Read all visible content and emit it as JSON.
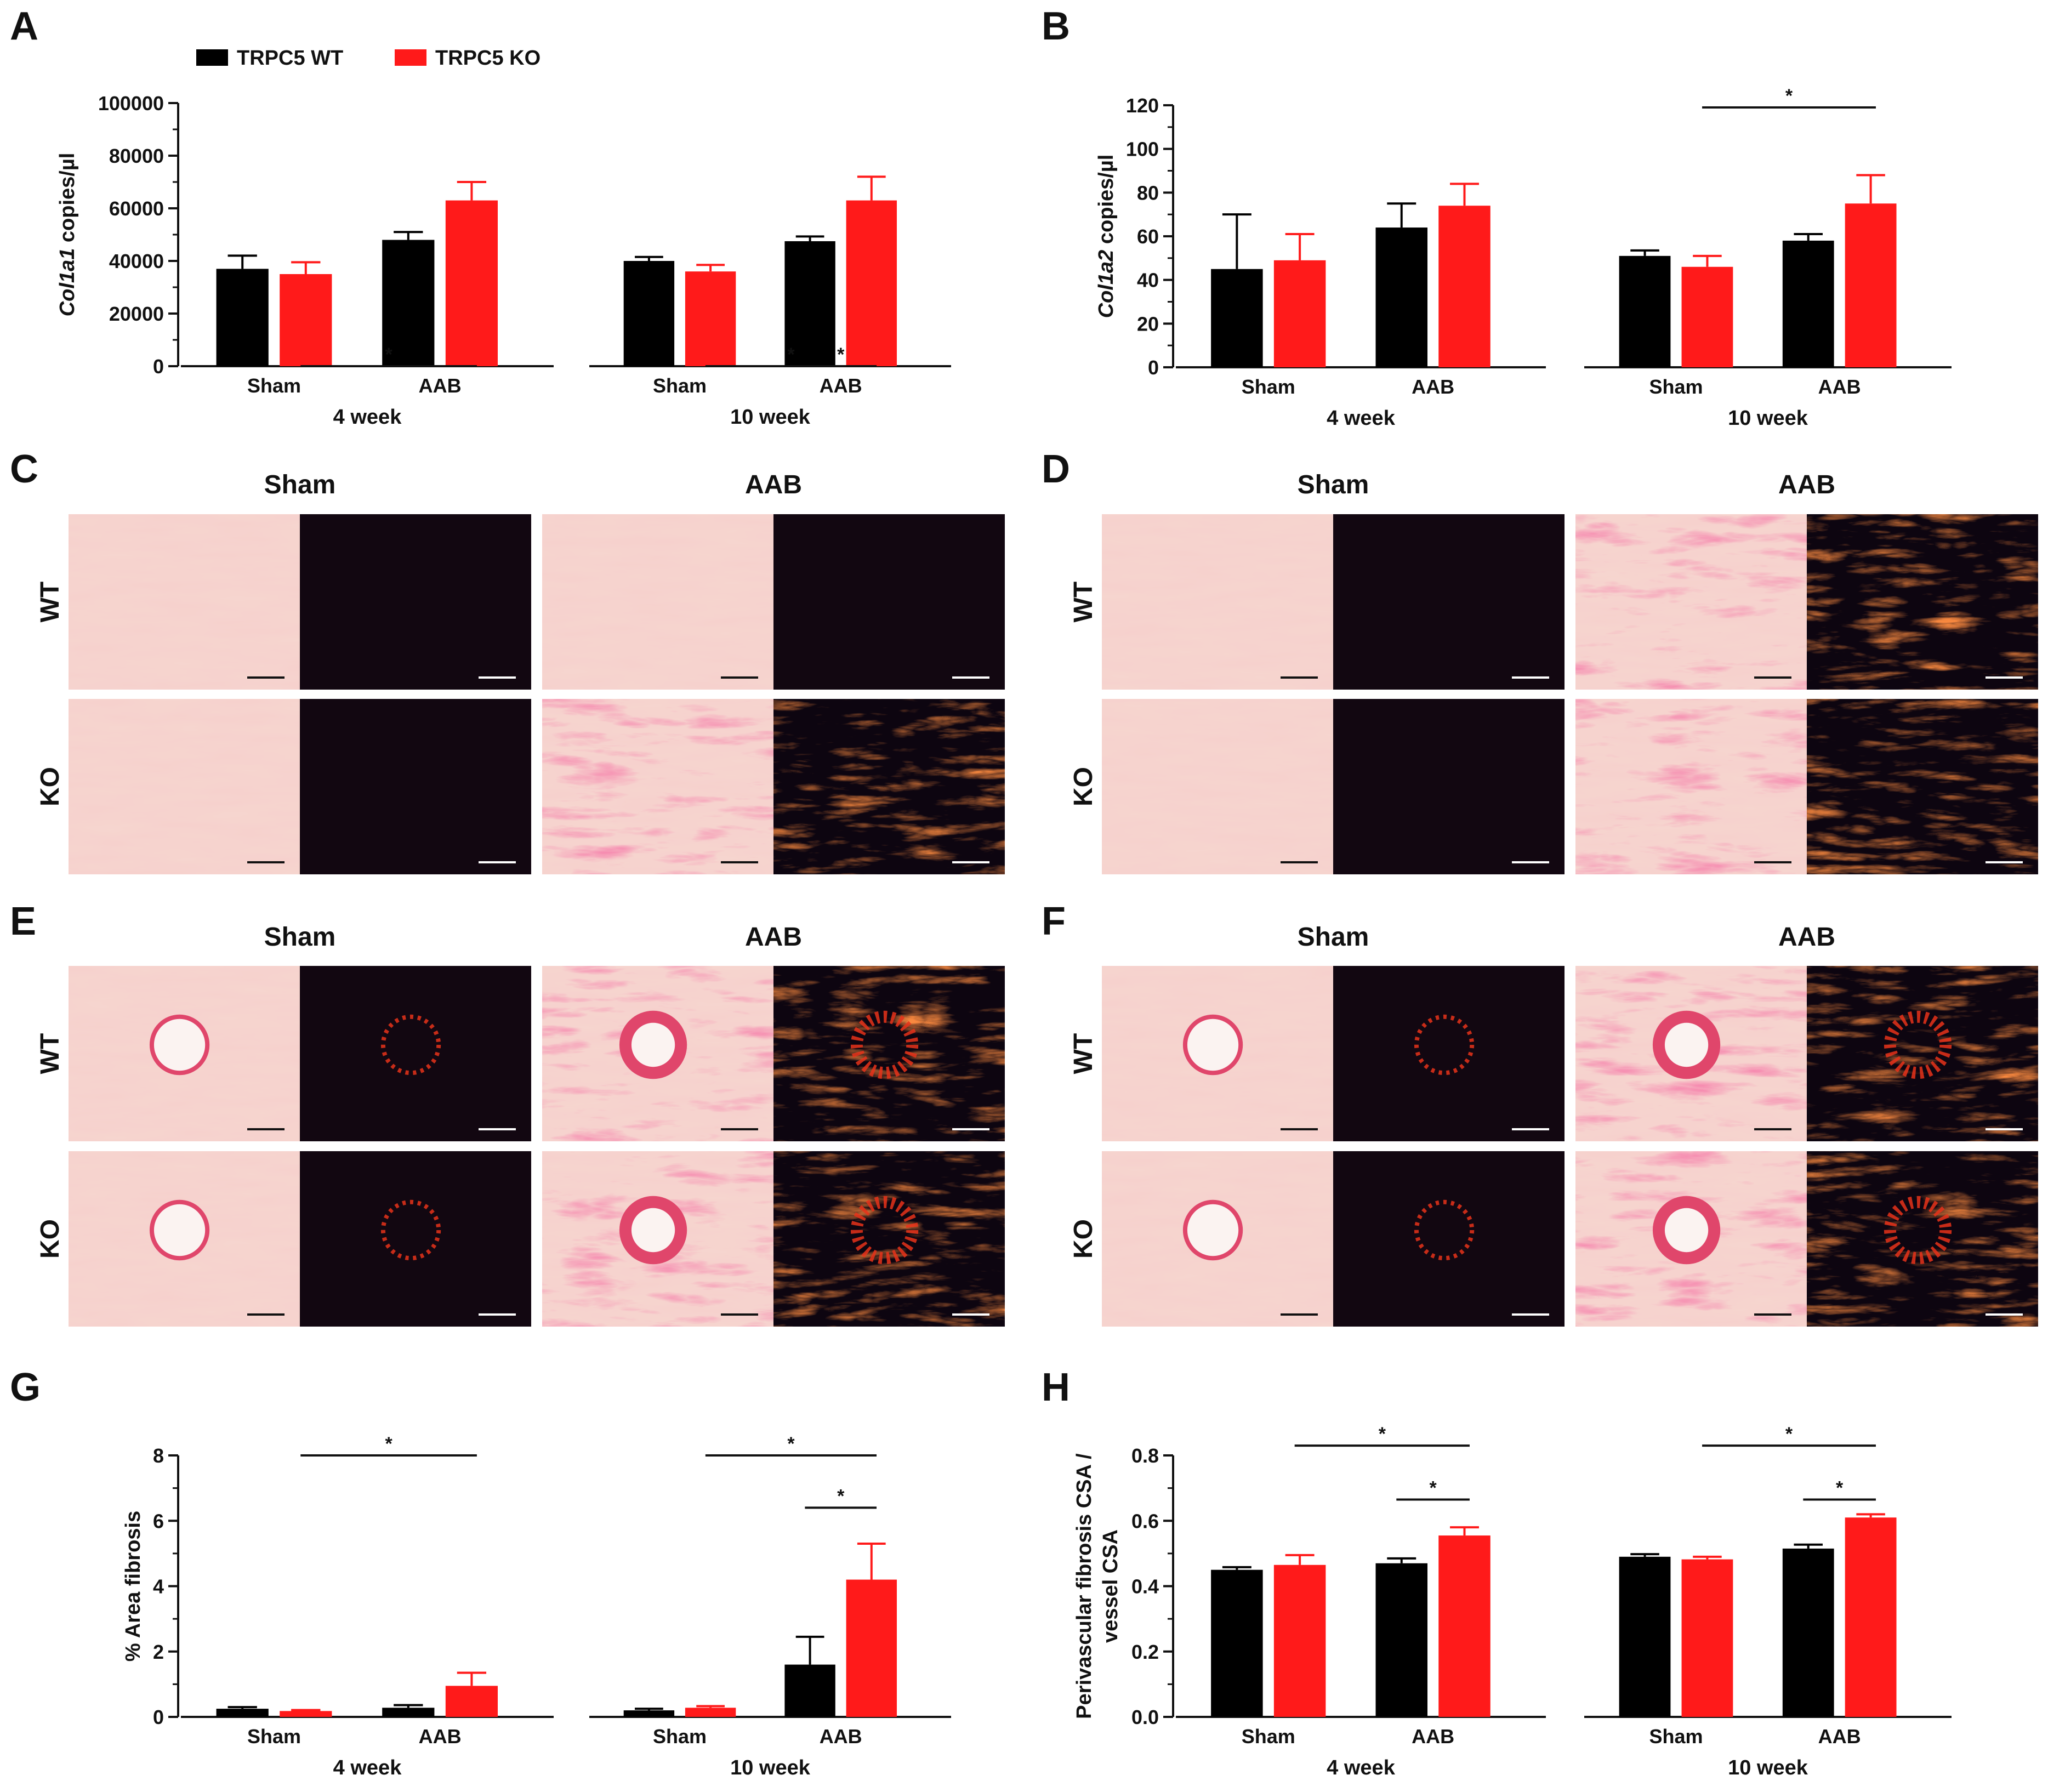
{
  "figure": {
    "panel_letters": [
      "A",
      "B",
      "C",
      "D",
      "E",
      "F",
      "G",
      "H"
    ],
    "legend": [
      {
        "label": "TRPC5 WT",
        "color": "#000000"
      },
      {
        "label": "TRPC5 KO",
        "color": "#ff1a1a"
      }
    ],
    "conditions": [
      "Sham",
      "AAB"
    ],
    "genotypes": [
      "WT",
      "KO"
    ],
    "colors": {
      "wt": "#000000",
      "ko": "#ff1a1a"
    }
  },
  "micrographs": [
    {
      "panel": "C",
      "region": "interstitial",
      "images": {
        "wt_sham_bf": "pale",
        "wt_sham_pl": "dark",
        "wt_aab_bf": "pale",
        "wt_aab_pl": "dark",
        "ko_sham_bf": "pale",
        "ko_sham_pl": "dark",
        "ko_aab_bf": "fibrotic",
        "ko_aab_pl": "fibrotic"
      }
    },
    {
      "panel": "D",
      "region": "interstitial",
      "images": {
        "wt_sham_bf": "pale",
        "wt_sham_pl": "dark",
        "wt_aab_bf": "fibrotic",
        "wt_aab_pl": "fibrotic",
        "ko_sham_bf": "pale",
        "ko_sham_pl": "dark",
        "ko_aab_bf": "fibrotic",
        "ko_aab_pl": "fibrotic"
      }
    },
    {
      "panel": "E",
      "region": "perivascular",
      "images": {
        "wt_sham_bf": "vessel",
        "wt_sham_pl": "vessel-dark",
        "wt_aab_bf": "vessel-fibrotic",
        "wt_aab_pl": "vessel-fibrotic",
        "ko_sham_bf": "vessel",
        "ko_sham_pl": "vessel-dark",
        "ko_aab_bf": "vessel-fibrotic",
        "ko_aab_pl": "vessel-fibrotic"
      }
    },
    {
      "panel": "F",
      "region": "perivascular",
      "images": {
        "wt_sham_bf": "vessel",
        "wt_sham_pl": "vessel-dark",
        "wt_aab_bf": "vessel-fibrotic",
        "wt_aab_pl": "vessel-fibrotic",
        "ko_sham_bf": "vessel",
        "ko_sham_pl": "vessel-dark",
        "ko_aab_bf": "vessel-fibrotic",
        "ko_aab_pl": "vessel-fibrotic"
      }
    }
  ],
  "chart_data": [
    {
      "panel": "A",
      "type": "bar",
      "ylabel_italic": "Col1a1",
      "ylabel_rest": " copies/µl",
      "ylim": [
        0,
        100000
      ],
      "yticks": [
        0,
        20000,
        40000,
        60000,
        80000,
        100000
      ],
      "tick_labels": [
        "0",
        "20000",
        "40000",
        "60000",
        "80000",
        "100000"
      ],
      "groups": [
        {
          "label": "4 week",
          "categories": [
            "Sham",
            "AAB"
          ],
          "wt": [
            37000,
            48000
          ],
          "wt_err": [
            5000,
            3000
          ],
          "ko": [
            35000,
            63000
          ],
          "ko_err": [
            4500,
            7000
          ]
        },
        {
          "label": "10 week",
          "categories": [
            "Sham",
            "AAB"
          ],
          "wt": [
            40000,
            47500
          ],
          "wt_err": [
            1500,
            1800
          ],
          "ko": [
            36000,
            63000
          ],
          "ko_err": [
            2500,
            9000
          ]
        }
      ],
      "significance": [
        {
          "group": 0,
          "from": "ko0",
          "to": "ko1",
          "value": 1.0,
          "label": "*"
        },
        {
          "group": 1,
          "from": "ko0",
          "to": "ko1",
          "value": 1.0,
          "label": "*"
        },
        {
          "group": 1,
          "from": "wt1",
          "to": "ko1",
          "value": 0.8,
          "label": "*"
        }
      ]
    },
    {
      "panel": "B",
      "type": "bar",
      "ylabel_italic": "Col1a2",
      "ylabel_rest": " copies/µl",
      "ylim": [
        0,
        120
      ],
      "yticks": [
        0,
        20,
        40,
        60,
        80,
        100,
        120
      ],
      "tick_labels": [
        "0",
        "20",
        "40",
        "60",
        "80",
        "100",
        "120"
      ],
      "groups": [
        {
          "label": "4 week",
          "categories": [
            "Sham",
            "AAB"
          ],
          "wt": [
            45,
            64
          ],
          "wt_err": [
            25,
            11
          ],
          "ko": [
            49,
            74
          ],
          "ko_err": [
            12,
            10
          ]
        },
        {
          "label": "10 week",
          "categories": [
            "Sham",
            "AAB"
          ],
          "wt": [
            51,
            58
          ],
          "wt_err": [
            2.5,
            3
          ],
          "ko": [
            46,
            75
          ],
          "ko_err": [
            5,
            13
          ]
        }
      ],
      "significance": [
        {
          "group": 1,
          "from": "ko0",
          "to": "ko1",
          "value": 119,
          "label": "*"
        }
      ]
    },
    {
      "panel": "G",
      "type": "bar",
      "ylabel_italic": "",
      "ylabel_rest": "% Area fibrosis",
      "ylim": [
        0,
        8
      ],
      "yticks": [
        0,
        2,
        4,
        6,
        8
      ],
      "tick_labels": [
        "0",
        "2",
        "4",
        "6",
        "8"
      ],
      "groups": [
        {
          "label": "4 week",
          "categories": [
            "Sham",
            "AAB"
          ],
          "wt": [
            0.25,
            0.28
          ],
          "wt_err": [
            0.05,
            0.08
          ],
          "ko": [
            0.18,
            0.95
          ],
          "ko_err": [
            0.03,
            0.4
          ]
        },
        {
          "label": "10 week",
          "categories": [
            "Sham",
            "AAB"
          ],
          "wt": [
            0.2,
            1.6
          ],
          "wt_err": [
            0.05,
            0.85
          ],
          "ko": [
            0.28,
            4.2
          ],
          "ko_err": [
            0.05,
            1.1
          ]
        }
      ],
      "significance": [
        {
          "group": 0,
          "from": "ko0",
          "to": "ko1",
          "value": 8.0,
          "label": "*"
        },
        {
          "group": 1,
          "from": "ko0",
          "to": "ko1",
          "value": 8.0,
          "label": "*"
        },
        {
          "group": 1,
          "from": "wt1",
          "to": "ko1",
          "value": 6.4,
          "label": "*"
        }
      ]
    },
    {
      "panel": "H",
      "type": "bar",
      "ylabel_italic": "",
      "ylabel_rest": "Perivascular fibrosis CSA /",
      "ylabel_line2": "vessel CSA",
      "ylim": [
        0,
        0.8
      ],
      "yticks": [
        0,
        0.2,
        0.4,
        0.6,
        0.8
      ],
      "tick_labels": [
        "0.0",
        "0.2",
        "0.4",
        "0.6",
        "0.8"
      ],
      "groups": [
        {
          "label": "4 week",
          "categories": [
            "Sham",
            "AAB"
          ],
          "wt": [
            0.45,
            0.47
          ],
          "wt_err": [
            0.008,
            0.015
          ],
          "ko": [
            0.465,
            0.555
          ],
          "ko_err": [
            0.03,
            0.025
          ]
        },
        {
          "label": "10 week",
          "categories": [
            "Sham",
            "AAB"
          ],
          "wt": [
            0.49,
            0.515
          ],
          "wt_err": [
            0.008,
            0.012
          ],
          "ko": [
            0.482,
            0.61
          ],
          "ko_err": [
            0.008,
            0.01
          ]
        }
      ],
      "significance": [
        {
          "group": 0,
          "from": "ko0",
          "to": "ko1",
          "value": 0.83,
          "label": "*"
        },
        {
          "group": 0,
          "from": "wt1",
          "to": "ko1",
          "value": 0.665,
          "label": "*"
        },
        {
          "group": 1,
          "from": "ko0",
          "to": "ko1",
          "value": 0.83,
          "label": "*"
        },
        {
          "group": 1,
          "from": "wt1",
          "to": "ko1",
          "value": 0.665,
          "label": "*"
        }
      ]
    }
  ]
}
